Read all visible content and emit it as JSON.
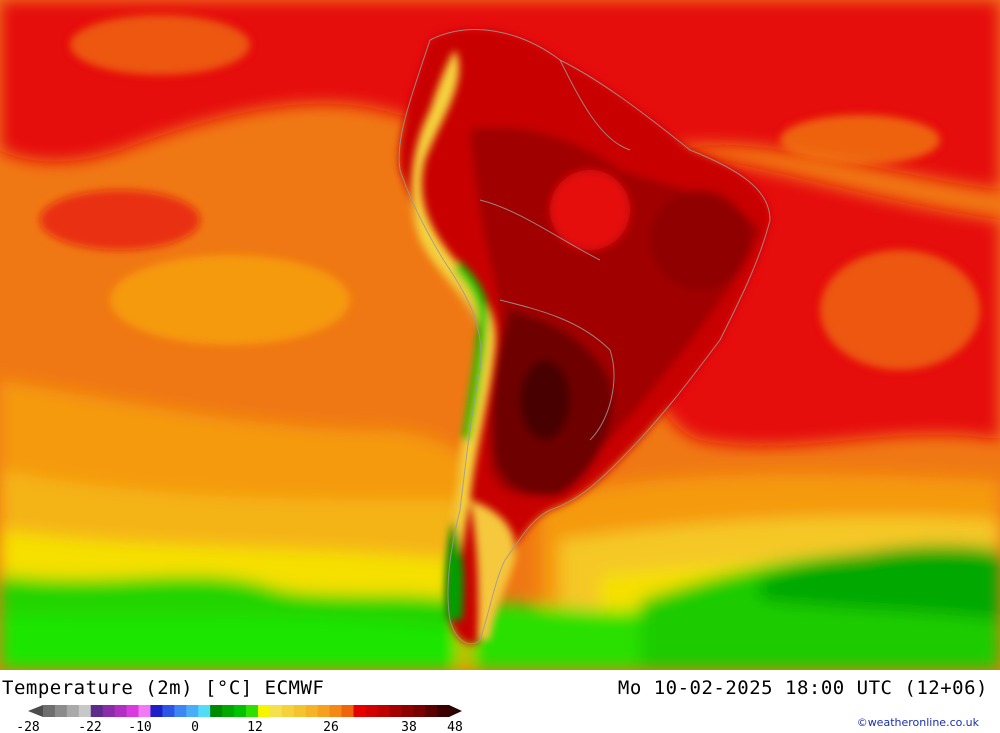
{
  "map": {
    "title": "Temperature (2m) [°C] ECMWF",
    "datetime": "Mo 10-02-2025 18:00 UTC (12+06)",
    "credit": "©weatheronline.co.uk"
  },
  "legend": {
    "colors": [
      "#6e6e6e",
      "#8c8c8c",
      "#a9a9a9",
      "#c8c8c8",
      "#5e2a8c",
      "#8a2ba8",
      "#b02fc2",
      "#d83ae0",
      "#f07af5",
      "#1f1fc9",
      "#2c55e8",
      "#3f86f5",
      "#48aef8",
      "#52dcf8",
      "#008a00",
      "#00a800",
      "#00c300",
      "#2ee000",
      "#f5f500",
      "#f5e14b",
      "#f5d23c",
      "#f5c32d",
      "#f5b428",
      "#f5a01e",
      "#f58714",
      "#f0640a",
      "#e60000",
      "#d20000",
      "#be0000",
      "#a50000",
      "#8c0000",
      "#780000",
      "#5a0000",
      "#3c0000"
    ],
    "tick_labels": [
      "-28",
      "-22",
      "-10",
      "0",
      "12",
      "26",
      "38",
      "48"
    ]
  }
}
